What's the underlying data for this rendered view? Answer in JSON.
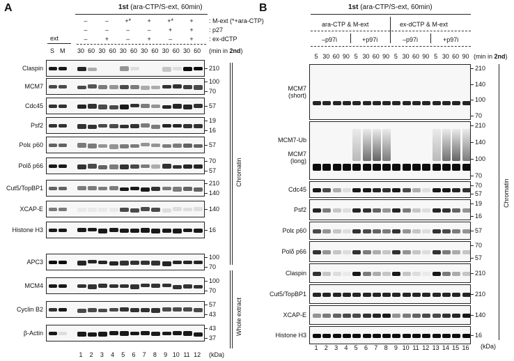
{
  "panelA": {
    "letter": "A",
    "top_title_bold": "1st",
    "top_title_rest": " (ara-CTP/S-ext, 60min)",
    "condition_labels": [
      ": M-ext (*+ara-CTP)",
      ": p27",
      ": ex-dCTP"
    ],
    "condition_rows": [
      [
        "–",
        "–",
        "+*",
        "+",
        "+*",
        "+"
      ],
      [
        "–",
        "–",
        "–",
        "–",
        "+",
        "+"
      ],
      [
        "–",
        "+",
        "–",
        "+",
        "–",
        "+"
      ]
    ],
    "ext_label": "ext",
    "ext_lanes": [
      "S",
      "M"
    ],
    "timepoints": [
      "30",
      "60",
      "30",
      "60",
      "30",
      "60",
      "30",
      "60",
      "30",
      "60",
      "30",
      "60"
    ],
    "time_unit_prefix": "(min in ",
    "time_unit_bold": "2nd",
    "time_unit_suffix": ")",
    "lane_numbers": [
      "1",
      "2",
      "3",
      "4",
      "5",
      "6",
      "7",
      "8",
      "9",
      "10",
      "11",
      "12"
    ],
    "kda_label": "(kDa)",
    "chromatin_blots": [
      {
        "name": "Claspin",
        "markers": [
          "210"
        ]
      },
      {
        "name": "MCM7",
        "markers": [
          "100",
          "70"
        ]
      },
      {
        "name": "Cdc45",
        "markers": [
          "57"
        ]
      },
      {
        "name": "Psf2",
        "markers": [
          "19",
          "16"
        ]
      },
      {
        "name": "Polε p60",
        "markers": [
          "57"
        ]
      },
      {
        "name": "Polδ p66",
        "markers": [
          "70",
          "57"
        ]
      },
      {
        "name": "Cut5/TopBP1",
        "markers": [
          "210",
          "140"
        ]
      },
      {
        "name": "XCAP-E",
        "markers": [
          "140"
        ]
      },
      {
        "name": "Histone H3",
        "markers": [
          "16"
        ]
      }
    ],
    "whole_blots": [
      {
        "name": "APC3",
        "markers": [
          "100",
          "70"
        ]
      },
      {
        "name": "MCM4",
        "markers": [
          "100",
          "70"
        ]
      },
      {
        "name": "Cyclin B2",
        "markers": [
          "57",
          "43"
        ]
      },
      {
        "name": "β-Actin",
        "markers": [
          "43",
          "37"
        ]
      }
    ],
    "chromatin_label": "Chromatin",
    "whole_label": "Whole extract"
  },
  "panelB": {
    "letter": "B",
    "top_title_bold": "1st",
    "top_title_rest": " (ara-CTP/S-ext, 60min)",
    "group_labels": [
      "ara-CTP & M-ext",
      "ex-dCTP & M-ext"
    ],
    "sub_labels": [
      "–p97i",
      "+p97i",
      "–p97i",
      "+p97i"
    ],
    "timepoints": [
      "5",
      "30",
      "60",
      "90",
      "5",
      "30",
      "60",
      "90",
      "5",
      "30",
      "60",
      "90",
      "5",
      "30",
      "60",
      "90"
    ],
    "time_unit_prefix": "(min in ",
    "time_unit_bold": "2nd",
    "time_unit_suffix": ")",
    "lane_numbers": [
      "1",
      "2",
      "3",
      "4",
      "5",
      "6",
      "7",
      "8",
      "9",
      "10",
      "11",
      "12",
      "13",
      "14",
      "15",
      "16"
    ],
    "kda_label": "(kDa)",
    "blots": [
      {
        "name": "MCM7\n(short)",
        "markers": [
          "210",
          "140",
          "100",
          "70"
        ]
      },
      {
        "name": "MCM7-Ub\n\nMCM7\n(long)",
        "markers": [
          "210",
          "140",
          "100",
          "70"
        ]
      },
      {
        "name": "Cdc45",
        "markers": [
          "70",
          "57"
        ]
      },
      {
        "name": "Psf2",
        "markers": [
          "19",
          "16"
        ]
      },
      {
        "name": "Polε p60",
        "markers": [
          "57"
        ]
      },
      {
        "name": "Polδ p66",
        "markers": [
          "70",
          "57"
        ]
      },
      {
        "name": "Claspin",
        "markers": [
          "210"
        ]
      },
      {
        "name": "Cut5/TopBP1",
        "markers": [
          "210"
        ]
      },
      {
        "name": "XCAP-E",
        "markers": [
          "140"
        ]
      },
      {
        "name": "Histone H3",
        "markers": [
          "16"
        ]
      }
    ],
    "chromatin_label": "Chromatin"
  }
}
